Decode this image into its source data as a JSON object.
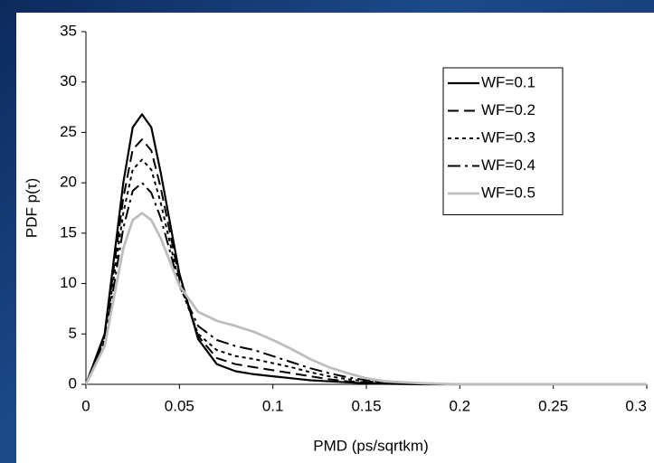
{
  "chart_data": {
    "type": "line",
    "x_label": "PMD (ps/sqrtkm)",
    "y_label": "PDF p(τ)",
    "x": [
      0,
      0.01,
      0.02,
      0.025,
      0.03,
      0.035,
      0.04,
      0.05,
      0.06,
      0.07,
      0.08,
      0.09,
      0.1,
      0.11,
      0.12,
      0.13,
      0.14,
      0.15,
      0.16,
      0.18,
      0.2,
      0.25,
      0.3
    ],
    "series": [
      {
        "name": "WF=0.1",
        "color": "#000000",
        "dash": "none",
        "width": 2.2,
        "values": [
          0,
          5,
          20,
          25.5,
          26.8,
          25.5,
          21,
          11,
          4.5,
          2,
          1.3,
          1.0,
          0.8,
          0.6,
          0.4,
          0.3,
          0.2,
          0.1,
          0.05,
          0,
          0,
          0,
          0
        ]
      },
      {
        "name": "WF=0.2",
        "color": "#000000",
        "dash": "12,6",
        "width": 2,
        "values": [
          0,
          4.8,
          18.5,
          23.3,
          24.3,
          23.2,
          19.5,
          10.5,
          4.8,
          2.6,
          2,
          1.7,
          1.4,
          1.1,
          0.8,
          0.5,
          0.3,
          0.2,
          0.1,
          0,
          0,
          0,
          0
        ]
      },
      {
        "name": "WF=0.3",
        "color": "#000000",
        "dash": "4,4",
        "width": 2,
        "values": [
          0,
          4.5,
          17,
          21.3,
          22.3,
          21.3,
          18,
          10,
          5,
          3.4,
          2.8,
          2.5,
          2.1,
          1.7,
          1.2,
          0.8,
          0.5,
          0.3,
          0.15,
          0.05,
          0,
          0,
          0
        ]
      },
      {
        "name": "WF=0.4",
        "color": "#000000",
        "dash": "14,5,3,5",
        "width": 2,
        "values": [
          0,
          4.2,
          15.5,
          19.2,
          20,
          19,
          16.5,
          9.8,
          5.8,
          4.4,
          3.8,
          3.4,
          2.8,
          2.2,
          1.6,
          1.1,
          0.7,
          0.4,
          0.2,
          0.05,
          0,
          0,
          0
        ]
      },
      {
        "name": "WF=0.5",
        "color": "#bdbdbd",
        "dash": "none",
        "width": 2.8,
        "values": [
          0,
          3.8,
          13.5,
          16.3,
          17,
          16.3,
          14.5,
          9.8,
          7.2,
          6.3,
          5.8,
          5.2,
          4.4,
          3.5,
          2.5,
          1.7,
          1.1,
          0.6,
          0.3,
          0.1,
          0,
          0,
          0
        ]
      }
    ],
    "xlim": [
      0,
      0.3
    ],
    "ylim": [
      0,
      35
    ],
    "xticks": [
      0,
      0.05,
      0.1,
      0.15,
      0.2,
      0.25,
      0.3
    ],
    "yticks": [
      0,
      5,
      10,
      15,
      20,
      25,
      30,
      35
    ],
    "legend": "top-right",
    "grid": false
  }
}
